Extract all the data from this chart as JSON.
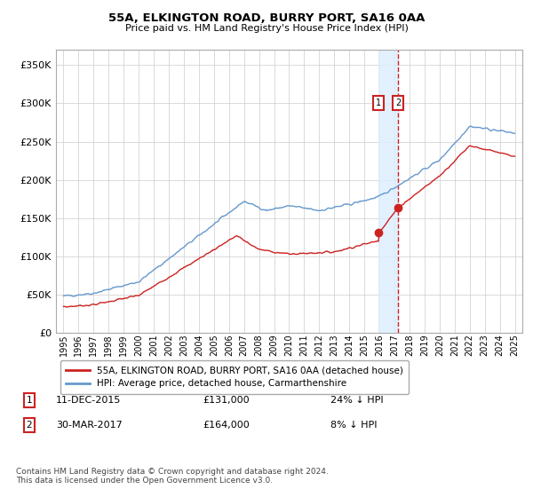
{
  "title": "55A, ELKINGTON ROAD, BURRY PORT, SA16 0AA",
  "subtitle": "Price paid vs. HM Land Registry's House Price Index (HPI)",
  "legend_label1": "55A, ELKINGTON ROAD, BURRY PORT, SA16 0AA (detached house)",
  "legend_label2": "HPI: Average price, detached house, Carmarthenshire",
  "sale1_date": "11-DEC-2015",
  "sale1_price": 131000,
  "sale1_note": "24% ↓ HPI",
  "sale1_x": 2015.95,
  "sale2_date": "30-MAR-2017",
  "sale2_price": 164000,
  "sale2_note": "8% ↓ HPI",
  "sale2_x": 2017.25,
  "footnote": "Contains HM Land Registry data © Crown copyright and database right 2024.\nThis data is licensed under the Open Government Licence v3.0.",
  "ylim": [
    0,
    370000
  ],
  "xlim": [
    1994.5,
    2025.5
  ],
  "hpi_color": "#6699cc",
  "price_color": "#cc2222",
  "marker_color": "#cc2222",
  "vspan_color": "#ddeeff",
  "vline_color": "#cc2222",
  "box_color": "#cc2222",
  "grid_color": "#cccccc",
  "legend_edge_color": "#aaaaaa"
}
